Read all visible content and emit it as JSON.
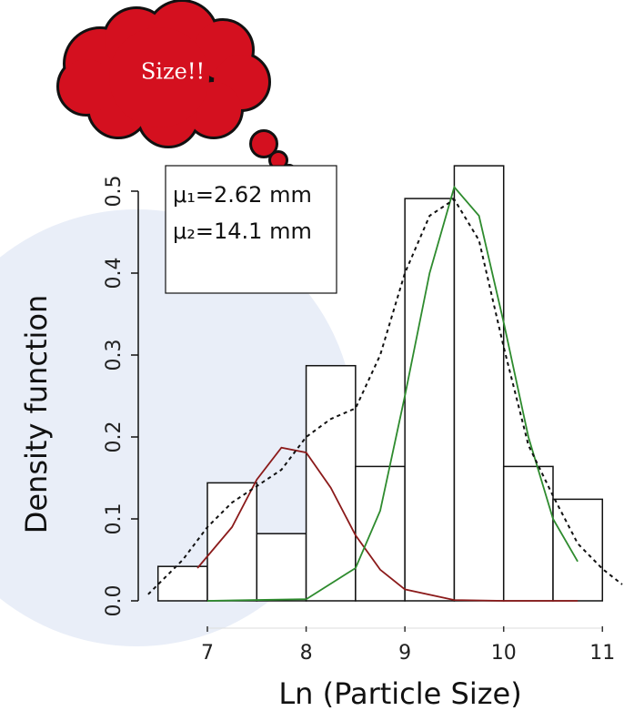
{
  "chart_data": {
    "type": "histogram",
    "xlabel": "Ln (Particle Size)",
    "ylabel": "Density function",
    "callout": "Size!!",
    "legend_lines": [
      "μ₁=2.62 mm",
      "μ₂=14.1 mm"
    ],
    "bins": [
      6.5,
      7,
      7.5,
      8,
      8.5,
      9,
      9.5,
      10,
      10.5,
      11
    ],
    "values": [
      0.042,
      0.144,
      0.082,
      0.287,
      0.164,
      0.491,
      0.531,
      0.164,
      0.124
    ],
    "color": "#ffffff",
    "lines": [
      {
        "color": "#8b1a1a",
        "dashed": false,
        "x": [
          6.9,
          7.25,
          7.5,
          7.75,
          8,
          8.25,
          8.5,
          8.75,
          9,
          9.5,
          10,
          10.75
        ],
        "values": [
          0.04,
          0.09,
          0.148,
          0.187,
          0.181,
          0.138,
          0.08,
          0.038,
          0.014,
          0.001,
          0,
          0
        ]
      },
      {
        "color": "#2e8b2e",
        "dashed": false,
        "x": [
          7,
          8,
          8.5,
          8.75,
          9,
          9.25,
          9.5,
          9.75,
          10,
          10.25,
          10.5,
          10.75
        ],
        "values": [
          0,
          0.002,
          0.04,
          0.11,
          0.25,
          0.4,
          0.505,
          0.47,
          0.34,
          0.2,
          0.1,
          0.048
        ]
      },
      {
        "color": "#111111",
        "dashed": true,
        "x": [
          6.4,
          6.75,
          7,
          7.25,
          7.5,
          7.75,
          8,
          8.25,
          8.5,
          8.75,
          9,
          9.25,
          9.5,
          9.75,
          10,
          10.25,
          10.5,
          10.75,
          11,
          11.2
        ],
        "values": [
          0.008,
          0.05,
          0.09,
          0.12,
          0.14,
          0.16,
          0.2,
          0.222,
          0.235,
          0.3,
          0.4,
          0.47,
          0.49,
          0.44,
          0.31,
          0.19,
          0.128,
          0.07,
          0.039,
          0.02
        ]
      }
    ],
    "xlim": [
      6.3,
      11.2
    ],
    "ylim": [
      0,
      0.55
    ],
    "xticks": [
      7,
      8,
      9,
      10,
      11
    ],
    "yticks": [
      {
        "value": 0,
        "label": "0.0"
      },
      0.1,
      0.2,
      0.3,
      0.4,
      0.5
    ]
  }
}
